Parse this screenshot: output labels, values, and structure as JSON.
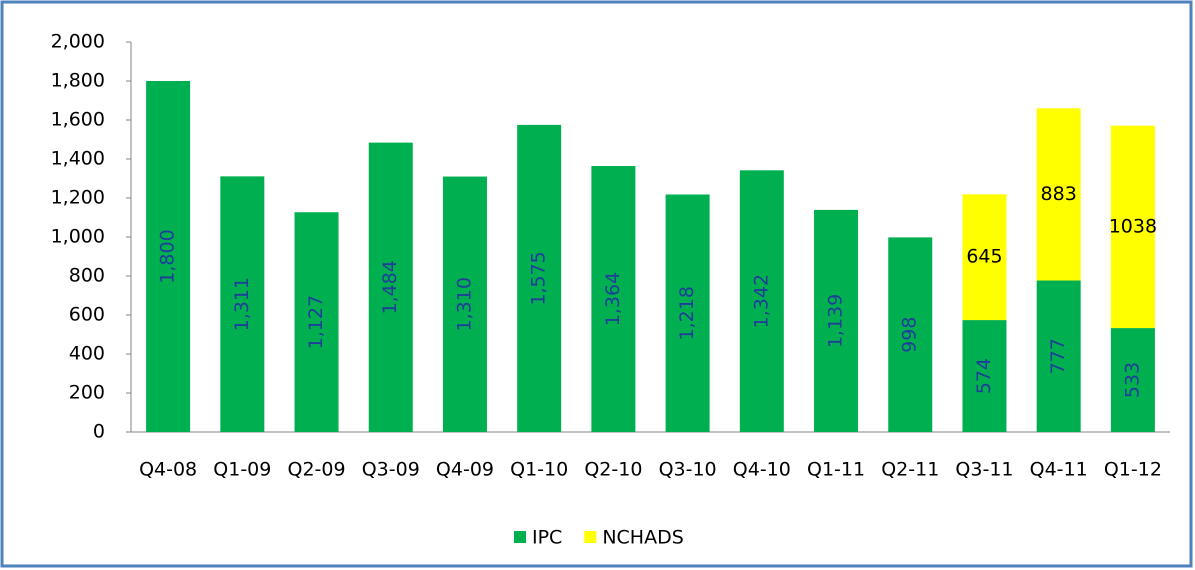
{
  "chart_data": {
    "type": "stacked_bar",
    "categories": [
      "Q4-08",
      "Q1-09",
      "Q2-09",
      "Q3-09",
      "Q4-09",
      "Q1-10",
      "Q2-10",
      "Q3-10",
      "Q4-10",
      "Q1-11",
      "Q2-11",
      "Q3-11",
      "Q4-11",
      "Q1-12"
    ],
    "series": [
      {
        "name": "IPC",
        "color": "#00b050",
        "values": [
          1800,
          1311,
          1127,
          1484,
          1310,
          1575,
          1364,
          1218,
          1342,
          1139,
          998,
          574,
          777,
          533
        ],
        "value_labels": [
          "1,800",
          "1,311",
          "1,127",
          "1,484",
          "1,310",
          "1,575",
          "1,364",
          "1,218",
          "1,342",
          "1,139",
          "998",
          "574",
          "777",
          "533"
        ]
      },
      {
        "name": "NCHADS",
        "color": "#ffff00",
        "values": [
          null,
          null,
          null,
          null,
          null,
          null,
          null,
          null,
          null,
          null,
          null,
          645,
          883,
          1038
        ]
      }
    ],
    "ylim": [
      0,
      2000
    ],
    "yticks": [
      0,
      200,
      400,
      600,
      800,
      {
        "value": 1000,
        "label": "1,000"
      },
      {
        "value": 1200,
        "label": "1,200"
      },
      {
        "value": 1400,
        "label": "1,400"
      },
      {
        "value": 1600,
        "label": "1,600"
      },
      {
        "value": 1800,
        "label": "1,800"
      },
      {
        "value": 2000,
        "label": "2,000"
      }
    ],
    "grid": false,
    "legend": "bottom"
  }
}
